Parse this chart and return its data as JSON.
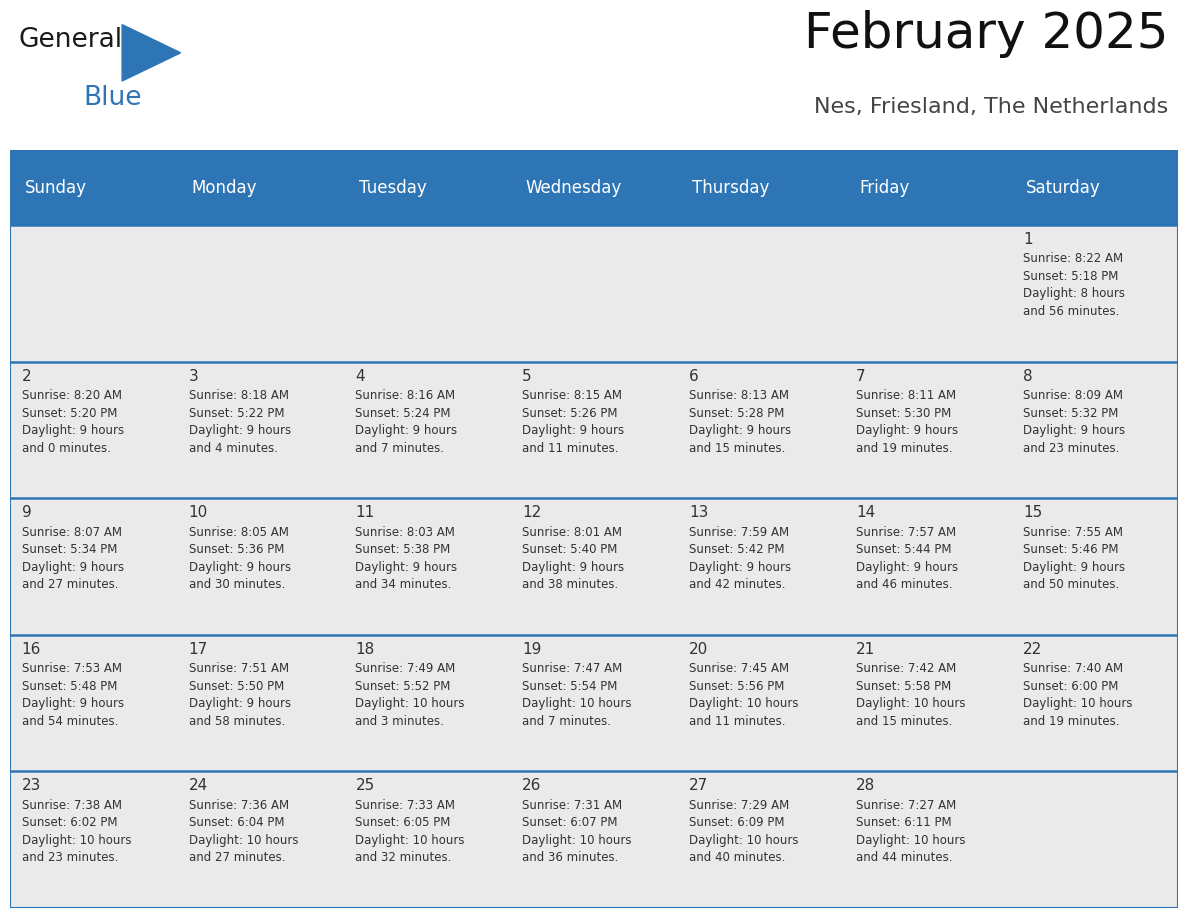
{
  "title": "February 2025",
  "subtitle": "Nes, Friesland, The Netherlands",
  "header_bg": "#2E75B6",
  "header_text_color": "#FFFFFF",
  "days_of_week": [
    "Sunday",
    "Monday",
    "Tuesday",
    "Wednesday",
    "Thursday",
    "Friday",
    "Saturday"
  ],
  "cell_bg_odd": "#EAEAEA",
  "cell_bg_even": "#F5F5F5",
  "border_color": "#2E75B6",
  "text_color": "#333333",
  "title_color": "#111111",
  "subtitle_color": "#444444",
  "calendar_data": [
    [
      {
        "day": "",
        "info": ""
      },
      {
        "day": "",
        "info": ""
      },
      {
        "day": "",
        "info": ""
      },
      {
        "day": "",
        "info": ""
      },
      {
        "day": "",
        "info": ""
      },
      {
        "day": "",
        "info": ""
      },
      {
        "day": "1",
        "info": "Sunrise: 8:22 AM\nSunset: 5:18 PM\nDaylight: 8 hours\nand 56 minutes."
      }
    ],
    [
      {
        "day": "2",
        "info": "Sunrise: 8:20 AM\nSunset: 5:20 PM\nDaylight: 9 hours\nand 0 minutes."
      },
      {
        "day": "3",
        "info": "Sunrise: 8:18 AM\nSunset: 5:22 PM\nDaylight: 9 hours\nand 4 minutes."
      },
      {
        "day": "4",
        "info": "Sunrise: 8:16 AM\nSunset: 5:24 PM\nDaylight: 9 hours\nand 7 minutes."
      },
      {
        "day": "5",
        "info": "Sunrise: 8:15 AM\nSunset: 5:26 PM\nDaylight: 9 hours\nand 11 minutes."
      },
      {
        "day": "6",
        "info": "Sunrise: 8:13 AM\nSunset: 5:28 PM\nDaylight: 9 hours\nand 15 minutes."
      },
      {
        "day": "7",
        "info": "Sunrise: 8:11 AM\nSunset: 5:30 PM\nDaylight: 9 hours\nand 19 minutes."
      },
      {
        "day": "8",
        "info": "Sunrise: 8:09 AM\nSunset: 5:32 PM\nDaylight: 9 hours\nand 23 minutes."
      }
    ],
    [
      {
        "day": "9",
        "info": "Sunrise: 8:07 AM\nSunset: 5:34 PM\nDaylight: 9 hours\nand 27 minutes."
      },
      {
        "day": "10",
        "info": "Sunrise: 8:05 AM\nSunset: 5:36 PM\nDaylight: 9 hours\nand 30 minutes."
      },
      {
        "day": "11",
        "info": "Sunrise: 8:03 AM\nSunset: 5:38 PM\nDaylight: 9 hours\nand 34 minutes."
      },
      {
        "day": "12",
        "info": "Sunrise: 8:01 AM\nSunset: 5:40 PM\nDaylight: 9 hours\nand 38 minutes."
      },
      {
        "day": "13",
        "info": "Sunrise: 7:59 AM\nSunset: 5:42 PM\nDaylight: 9 hours\nand 42 minutes."
      },
      {
        "day": "14",
        "info": "Sunrise: 7:57 AM\nSunset: 5:44 PM\nDaylight: 9 hours\nand 46 minutes."
      },
      {
        "day": "15",
        "info": "Sunrise: 7:55 AM\nSunset: 5:46 PM\nDaylight: 9 hours\nand 50 minutes."
      }
    ],
    [
      {
        "day": "16",
        "info": "Sunrise: 7:53 AM\nSunset: 5:48 PM\nDaylight: 9 hours\nand 54 minutes."
      },
      {
        "day": "17",
        "info": "Sunrise: 7:51 AM\nSunset: 5:50 PM\nDaylight: 9 hours\nand 58 minutes."
      },
      {
        "day": "18",
        "info": "Sunrise: 7:49 AM\nSunset: 5:52 PM\nDaylight: 10 hours\nand 3 minutes."
      },
      {
        "day": "19",
        "info": "Sunrise: 7:47 AM\nSunset: 5:54 PM\nDaylight: 10 hours\nand 7 minutes."
      },
      {
        "day": "20",
        "info": "Sunrise: 7:45 AM\nSunset: 5:56 PM\nDaylight: 10 hours\nand 11 minutes."
      },
      {
        "day": "21",
        "info": "Sunrise: 7:42 AM\nSunset: 5:58 PM\nDaylight: 10 hours\nand 15 minutes."
      },
      {
        "day": "22",
        "info": "Sunrise: 7:40 AM\nSunset: 6:00 PM\nDaylight: 10 hours\nand 19 minutes."
      }
    ],
    [
      {
        "day": "23",
        "info": "Sunrise: 7:38 AM\nSunset: 6:02 PM\nDaylight: 10 hours\nand 23 minutes."
      },
      {
        "day": "24",
        "info": "Sunrise: 7:36 AM\nSunset: 6:04 PM\nDaylight: 10 hours\nand 27 minutes."
      },
      {
        "day": "25",
        "info": "Sunrise: 7:33 AM\nSunset: 6:05 PM\nDaylight: 10 hours\nand 32 minutes."
      },
      {
        "day": "26",
        "info": "Sunrise: 7:31 AM\nSunset: 6:07 PM\nDaylight: 10 hours\nand 36 minutes."
      },
      {
        "day": "27",
        "info": "Sunrise: 7:29 AM\nSunset: 6:09 PM\nDaylight: 10 hours\nand 40 minutes."
      },
      {
        "day": "28",
        "info": "Sunrise: 7:27 AM\nSunset: 6:11 PM\nDaylight: 10 hours\nand 44 minutes."
      },
      {
        "day": "",
        "info": ""
      }
    ]
  ],
  "num_rows": 5,
  "num_cols": 7,
  "logo_text_general": "General",
  "logo_text_blue": "Blue",
  "logo_color_general": "#1a1a1a",
  "logo_color_blue": "#2E75B6",
  "logo_triangle_color": "#2E75B6",
  "header_fontsize": 12,
  "day_number_fontsize": 11,
  "info_fontsize": 8.5,
  "title_fontsize": 36,
  "subtitle_fontsize": 16
}
